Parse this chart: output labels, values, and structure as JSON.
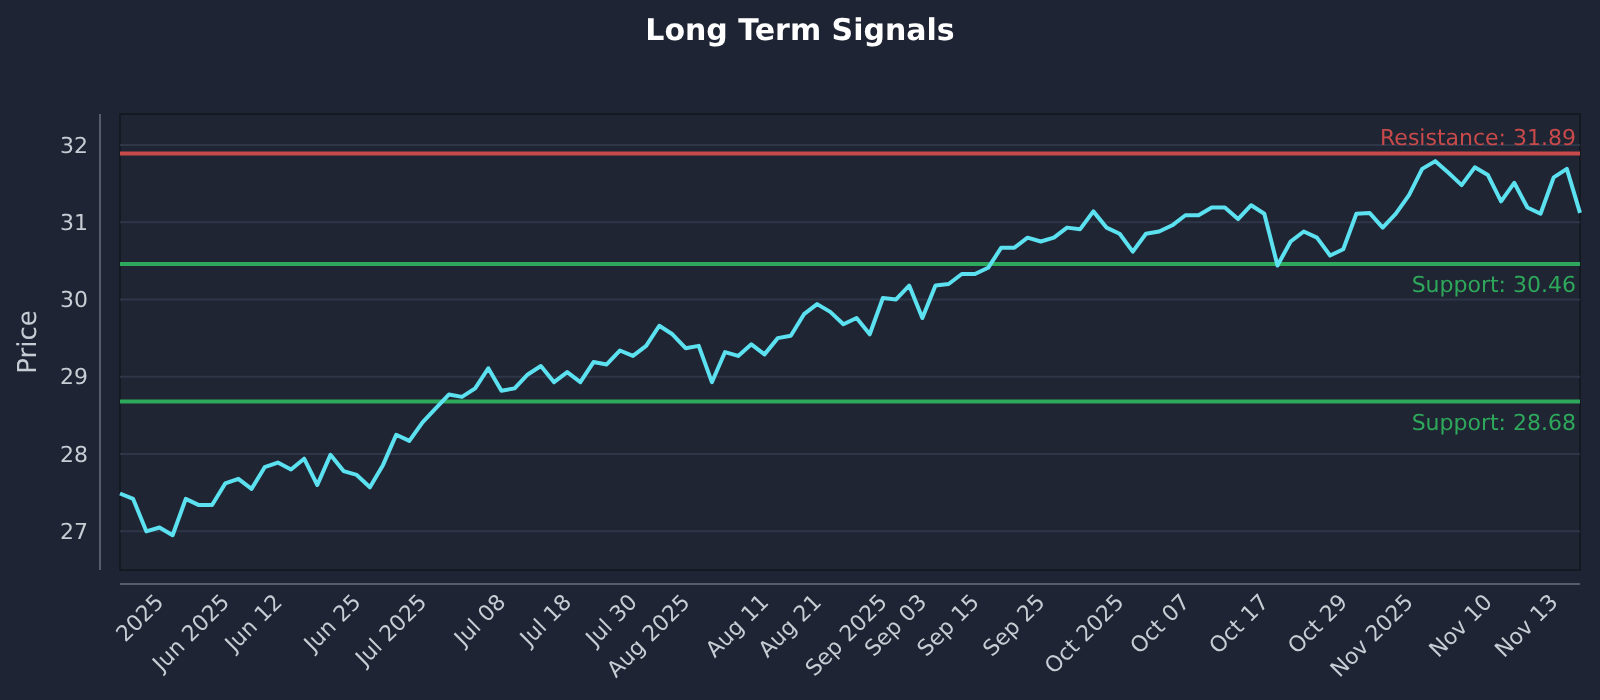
{
  "chart_data": {
    "type": "line",
    "title": "Long Term Signals",
    "ylabel": "Price",
    "ylim": [
      26.5,
      32.4
    ],
    "yticks": [
      27,
      28,
      29,
      30,
      31,
      32
    ],
    "grid": "y",
    "marker": "none",
    "line_style": "solid",
    "categories": [
      null,
      null,
      null,
      "2025",
      null,
      null,
      null,
      null,
      "Jun 2025",
      null,
      null,
      null,
      "Jun 12",
      null,
      null,
      null,
      null,
      null,
      "Jun 25",
      null,
      null,
      null,
      null,
      "Jul 2025",
      null,
      null,
      null,
      null,
      null,
      "Jul 08",
      null,
      null,
      null,
      null,
      "Jul 18",
      null,
      null,
      null,
      null,
      "Jul 30",
      null,
      null,
      null,
      "Aug 2025",
      null,
      null,
      null,
      null,
      null,
      "Aug 11",
      null,
      null,
      null,
      "Aug 21",
      null,
      null,
      null,
      null,
      "Sep 2025",
      null,
      null,
      "Sep 03",
      null,
      null,
      null,
      "Sep 15",
      null,
      null,
      null,
      null,
      "Sep 25",
      null,
      null,
      null,
      null,
      null,
      "Oct 2025",
      null,
      null,
      null,
      null,
      "Oct 07",
      null,
      null,
      null,
      null,
      null,
      "Oct 17",
      null,
      null,
      null,
      null,
      null,
      "Oct 29",
      null,
      null,
      null,
      null,
      "Nov 2025",
      null,
      null,
      null,
      null,
      null,
      "Nov 10",
      null,
      null,
      null,
      null,
      "Nov 13",
      null,
      null
    ],
    "series": [
      {
        "color": "#5ce1f0",
        "values": [
          27.49,
          27.42,
          27.0,
          27.05,
          26.95,
          27.42,
          27.34,
          27.34,
          27.62,
          27.68,
          27.55,
          27.83,
          27.89,
          27.8,
          27.94,
          27.6,
          27.99,
          27.78,
          27.73,
          27.57,
          27.86,
          28.25,
          28.17,
          28.41,
          28.59,
          28.77,
          28.74,
          28.85,
          29.11,
          28.82,
          28.85,
          29.03,
          29.14,
          28.93,
          29.06,
          28.93,
          29.19,
          29.16,
          29.34,
          29.27,
          29.4,
          29.66,
          29.55,
          29.37,
          29.4,
          28.93,
          29.32,
          29.27,
          29.42,
          29.29,
          29.5,
          29.53,
          29.81,
          29.94,
          29.84,
          29.68,
          29.76,
          29.55,
          30.02,
          30.0,
          30.18,
          29.76,
          30.18,
          30.2,
          30.33,
          30.33,
          30.41,
          30.67,
          30.67,
          30.8,
          30.75,
          30.8,
          30.93,
          30.91,
          31.14,
          30.93,
          30.85,
          30.62,
          30.85,
          30.88,
          30.96,
          31.09,
          31.09,
          31.19,
          31.19,
          31.04,
          31.22,
          31.11,
          30.44,
          30.75,
          30.88,
          30.8,
          30.57,
          30.65,
          31.11,
          31.12,
          30.93,
          31.11,
          31.35,
          31.69,
          31.79,
          31.64,
          31.48,
          31.71,
          31.61,
          31.27,
          31.51,
          31.19,
          31.11,
          31.58,
          31.69,
          31.12
        ]
      }
    ],
    "ref_lines": [
      {
        "axis": "y",
        "value": 31.89,
        "label": "Resistance: 31.89",
        "color": "#c94a4a"
      },
      {
        "axis": "y",
        "value": 30.46,
        "label": "Support: 30.46",
        "color": "#2ea85a"
      },
      {
        "axis": "y",
        "value": 28.68,
        "label": "Support: 28.68",
        "color": "#2ea85a"
      }
    ]
  }
}
